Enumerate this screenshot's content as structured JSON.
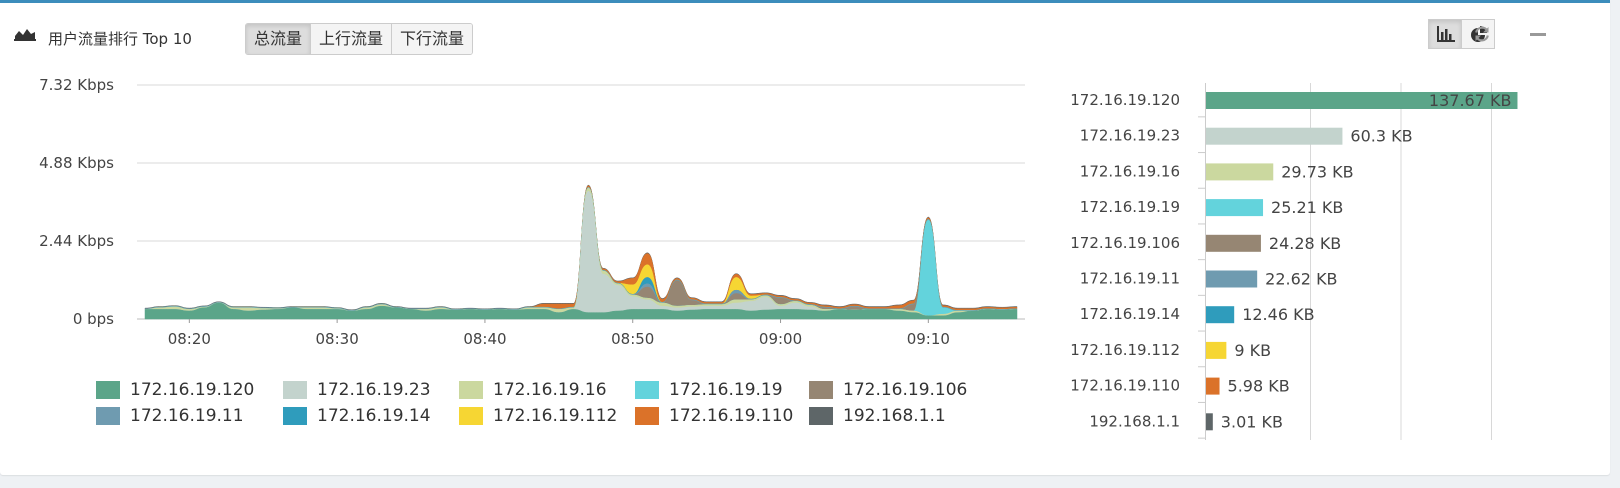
{
  "header": {
    "title": "用户流量排行 Top 10",
    "tabs": [
      {
        "label": "总流量",
        "active": true
      },
      {
        "label": "上行流量",
        "active": false
      },
      {
        "label": "下行流量",
        "active": false
      }
    ],
    "tools": [
      {
        "icon": "bar-chart-icon",
        "active": true
      },
      {
        "icon": "pie-chart-icon",
        "active": false
      },
      {
        "icon": "refresh-icon",
        "active": false
      },
      {
        "icon": "minimize-icon",
        "active": false
      }
    ]
  },
  "colors": [
    "#5ba589",
    "#c3d3cd",
    "#cbd89f",
    "#63d3dc",
    "#968673",
    "#6f9bb0",
    "#2f9cbc",
    "#f6d633",
    "#db7229",
    "#5e6668"
  ],
  "chart_data": [
    {
      "type": "area",
      "stacked": true,
      "x": [
        "08:17",
        "08:18",
        "08:19",
        "08:20",
        "08:21",
        "08:22",
        "08:23",
        "08:24",
        "08:25",
        "08:26",
        "08:27",
        "08:28",
        "08:29",
        "08:30",
        "08:31",
        "08:32",
        "08:33",
        "08:34",
        "08:35",
        "08:36",
        "08:37",
        "08:38",
        "08:39",
        "08:40",
        "08:41",
        "08:42",
        "08:43",
        "08:44",
        "08:45",
        "08:46",
        "08:47",
        "08:48",
        "08:49",
        "08:50",
        "08:51",
        "08:52",
        "08:53",
        "08:54",
        "08:55",
        "08:56",
        "08:57",
        "08:58",
        "08:59",
        "09:00",
        "09:01",
        "09:02",
        "09:03",
        "09:04",
        "09:05",
        "09:06",
        "09:07",
        "09:08",
        "09:09",
        "09:10",
        "09:11",
        "09:12",
        "09:13",
        "09:14",
        "09:15",
        "09:16"
      ],
      "x_ticks": [
        "08:20",
        "08:30",
        "08:40",
        "08:50",
        "09:00",
        "09:10"
      ],
      "y_ticks": [
        "0 bps",
        "2.44 Kbps",
        "4.88 Kbps",
        "7.32 Kbps"
      ],
      "ylim": [
        0,
        7.32
      ],
      "yunit": "Kbps",
      "grid": true,
      "legend": "bottom",
      "series": [
        {
          "name": "172.16.19.120",
          "values": [
            0.3,
            0.3,
            0.3,
            0.25,
            0.35,
            0.5,
            0.3,
            0.25,
            0.28,
            0.3,
            0.35,
            0.3,
            0.3,
            0.3,
            0.25,
            0.3,
            0.4,
            0.35,
            0.3,
            0.25,
            0.3,
            0.28,
            0.3,
            0.28,
            0.3,
            0.28,
            0.3,
            0.3,
            0.2,
            0.3,
            0.2,
            0.2,
            0.25,
            0.3,
            0.3,
            0.3,
            0.25,
            0.28,
            0.3,
            0.3,
            0.3,
            0.25,
            0.28,
            0.3,
            0.3,
            0.28,
            0.25,
            0.3,
            0.28,
            0.3,
            0.3,
            0.25,
            0.2,
            0.1,
            0.1,
            0.2,
            0.25,
            0.3,
            0.28,
            0.3
          ]
        },
        {
          "name": "172.16.19.23",
          "values": [
            0,
            0,
            0,
            0,
            0,
            0,
            0,
            0,
            0,
            0,
            0,
            0,
            0,
            0,
            0,
            0,
            0,
            0,
            0,
            0,
            0,
            0,
            0,
            0,
            0,
            0,
            0,
            0,
            0,
            0,
            3.8,
            1.2,
            0.8,
            0.4,
            0.3,
            0.1,
            0.1,
            0.1,
            0.1,
            0.1,
            0.2,
            0.3,
            0.4,
            0.1,
            0.2,
            0.1,
            0,
            0,
            0,
            0,
            0,
            0,
            0,
            0,
            0,
            0,
            0,
            0,
            0,
            0
          ]
        },
        {
          "name": "172.16.19.16",
          "values": [
            0,
            0.05,
            0.08,
            0.05,
            0.02,
            0,
            0.05,
            0.1,
            0.05,
            0.02,
            0,
            0.05,
            0.05,
            0.02,
            0,
            0.05,
            0.05,
            0,
            0,
            0.05,
            0.05,
            0,
            0,
            0,
            0,
            0,
            0.05,
            0.05,
            0.1,
            0.05,
            0.1,
            0.1,
            0.05,
            0.05,
            0.05,
            0.1,
            0.05,
            0.05,
            0.05,
            0.05,
            0.1,
            0.05,
            0.05,
            0.05,
            0.05,
            0.05,
            0.05,
            0,
            0,
            0,
            0,
            0.05,
            0.05,
            0,
            0.05,
            0.05,
            0,
            0,
            0,
            0
          ]
        },
        {
          "name": "172.16.19.19",
          "values": [
            0,
            0,
            0,
            0,
            0,
            0,
            0,
            0,
            0,
            0,
            0,
            0,
            0,
            0,
            0,
            0,
            0,
            0,
            0,
            0,
            0,
            0,
            0,
            0,
            0,
            0,
            0,
            0,
            0,
            0,
            0,
            0,
            0,
            0,
            0,
            0,
            0,
            0,
            0,
            0,
            0,
            0,
            0,
            0,
            0,
            0,
            0,
            0,
            0,
            0,
            0,
            0,
            0,
            3.0,
            0.2,
            0,
            0,
            0,
            0,
            0
          ]
        },
        {
          "name": "172.16.19.106",
          "values": [
            0,
            0,
            0,
            0,
            0,
            0,
            0,
            0,
            0,
            0,
            0,
            0,
            0,
            0,
            0,
            0,
            0,
            0,
            0,
            0,
            0,
            0,
            0,
            0,
            0,
            0,
            0,
            0,
            0,
            0,
            0,
            0,
            0,
            0,
            0.35,
            0,
            0.8,
            0.15,
            0,
            0,
            0.2,
            0,
            0,
            0.2,
            0,
            0,
            0.05,
            0,
            0.1,
            0,
            0,
            0,
            0.2,
            0,
            0,
            0,
            0,
            0,
            0,
            0
          ]
        },
        {
          "name": "172.16.19.11",
          "values": [
            0.02,
            0.02,
            0.02,
            0.02,
            0.02,
            0.02,
            0.02,
            0.02,
            0.02,
            0.02,
            0.02,
            0.02,
            0.02,
            0.02,
            0.02,
            0.02,
            0.02,
            0.02,
            0.02,
            0.02,
            0.02,
            0.02,
            0.02,
            0.02,
            0.02,
            0.02,
            0.02,
            0.02,
            0.02,
            0.02,
            0.02,
            0.02,
            0.02,
            0.02,
            0.1,
            0.02,
            0.02,
            0.02,
            0.02,
            0.02,
            0.1,
            0.02,
            0.02,
            0.02,
            0.02,
            0.02,
            0.02,
            0.02,
            0.02,
            0.02,
            0.02,
            0.02,
            0.02,
            0.02,
            0.02,
            0.02,
            0.02,
            0.02,
            0.02,
            0.02
          ]
        },
        {
          "name": "172.16.19.14",
          "values": [
            0,
            0,
            0,
            0,
            0,
            0,
            0,
            0,
            0,
            0,
            0,
            0,
            0,
            0,
            0,
            0,
            0,
            0,
            0,
            0,
            0,
            0,
            0,
            0,
            0,
            0,
            0,
            0,
            0,
            0,
            0,
            0,
            0,
            0,
            0.2,
            0,
            0,
            0,
            0,
            0,
            0,
            0,
            0,
            0,
            0,
            0,
            0,
            0,
            0,
            0,
            0,
            0,
            0,
            0,
            0,
            0,
            0,
            0,
            0,
            0
          ]
        },
        {
          "name": "172.16.19.112",
          "values": [
            0,
            0,
            0,
            0,
            0,
            0,
            0,
            0,
            0,
            0,
            0,
            0,
            0,
            0,
            0,
            0,
            0,
            0,
            0,
            0,
            0,
            0,
            0,
            0,
            0,
            0,
            0,
            0,
            0,
            0,
            0,
            0,
            0,
            0.3,
            0.4,
            0,
            0,
            0,
            0,
            0,
            0.4,
            0.1,
            0,
            0,
            0,
            0,
            0,
            0,
            0,
            0,
            0,
            0,
            0,
            0,
            0,
            0,
            0,
            0,
            0,
            0
          ]
        },
        {
          "name": "172.16.19.110",
          "values": [
            0,
            0,
            0,
            0,
            0,
            0,
            0,
            0,
            0,
            0,
            0,
            0,
            0,
            0,
            0,
            0,
            0,
            0,
            0,
            0,
            0,
            0,
            0,
            0,
            0,
            0,
            0,
            0.1,
            0.15,
            0.1,
            0.05,
            0.05,
            0.05,
            0.2,
            0.35,
            0.1,
            0.05,
            0.05,
            0.05,
            0.05,
            0.1,
            0.05,
            0.05,
            0.05,
            0.05,
            0.05,
            0.05,
            0.05,
            0.05,
            0.05,
            0.05,
            0.1,
            0.1,
            0.05,
            0.05,
            0.05,
            0.05,
            0.05,
            0.05,
            0.05
          ]
        },
        {
          "name": "192.168.1.1",
          "values": [
            0.02,
            0.02,
            0.02,
            0.02,
            0.02,
            0.02,
            0.02,
            0.02,
            0.02,
            0.02,
            0.02,
            0.02,
            0.02,
            0.02,
            0.02,
            0.02,
            0.02,
            0.02,
            0.02,
            0.02,
            0.02,
            0.02,
            0.02,
            0.02,
            0.02,
            0.02,
            0.02,
            0.02,
            0.02,
            0.02,
            0.02,
            0.02,
            0.02,
            0.02,
            0.02,
            0.02,
            0.02,
            0.02,
            0.02,
            0.02,
            0.02,
            0.02,
            0.02,
            0.02,
            0.02,
            0.02,
            0.02,
            0.02,
            0.02,
            0.02,
            0.02,
            0.02,
            0.02,
            0.02,
            0.02,
            0.02,
            0.02,
            0.02,
            0.02,
            0.02
          ]
        }
      ]
    },
    {
      "type": "bar",
      "orientation": "horizontal",
      "unit": "KB",
      "xlim": [
        0,
        160
      ],
      "grid": true,
      "categories": [
        "172.16.19.120",
        "172.16.19.23",
        "172.16.19.16",
        "172.16.19.19",
        "172.16.19.106",
        "172.16.19.11",
        "172.16.19.14",
        "172.16.19.112",
        "172.16.19.110",
        "192.168.1.1"
      ],
      "values": [
        137.67,
        60.3,
        29.73,
        25.21,
        24.28,
        22.62,
        12.46,
        9,
        5.98,
        3.01
      ],
      "labels": [
        "137.67 KB",
        "60.3 KB",
        "29.73 KB",
        "25.21 KB",
        "24.28 KB",
        "22.62 KB",
        "12.46 KB",
        "9 KB",
        "5.98 KB",
        "3.01 KB"
      ]
    }
  ]
}
